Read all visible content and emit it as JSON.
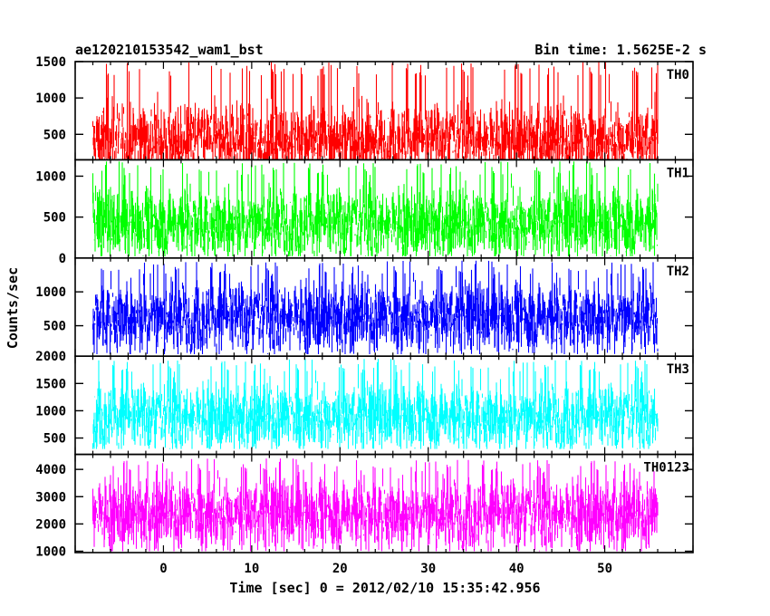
{
  "chart_data": {
    "type": "line",
    "title_left": "ae120210153542_wam1_bst",
    "title_right": "Bin time: 1.5625E-2 s",
    "xlabel": "Time [sec] 0 = 2012/02/10 15:35:42.956",
    "ylabel": "Counts/sec",
    "xlim": [
      -10,
      60
    ],
    "xticks": [
      0,
      10,
      20,
      30,
      40,
      50
    ],
    "data_range": [
      -8,
      56
    ],
    "grid": false,
    "panels": [
      {
        "name": "TH0",
        "color": "#ff0000",
        "ylim": [
          150,
          1500
        ],
        "yticks": [
          500,
          1000,
          1500
        ],
        "mean": 430,
        "min": 150,
        "max": 1500
      },
      {
        "name": "TH1",
        "color": "#00ff00",
        "ylim": [
          0,
          1200
        ],
        "yticks": [
          0,
          500,
          1000
        ],
        "mean": 430,
        "min": 20,
        "max": 1180
      },
      {
        "name": "TH2",
        "color": "#0000ff",
        "ylim": [
          50,
          1500
        ],
        "yticks": [
          500,
          1000
        ],
        "mean": 640,
        "min": 80,
        "max": 1460
      },
      {
        "name": "TH3",
        "color": "#00ffff",
        "ylim": [
          200,
          2000
        ],
        "yticks": [
          500,
          1000,
          1500,
          2000
        ],
        "mean": 900,
        "min": 300,
        "max": 1950
      },
      {
        "name": "TH0123",
        "color": "#ff00ff",
        "ylim": [
          950,
          4550
        ],
        "yticks": [
          1000,
          2000,
          3000,
          4000
        ],
        "mean": 2400,
        "min": 1000,
        "max": 4400
      }
    ]
  }
}
